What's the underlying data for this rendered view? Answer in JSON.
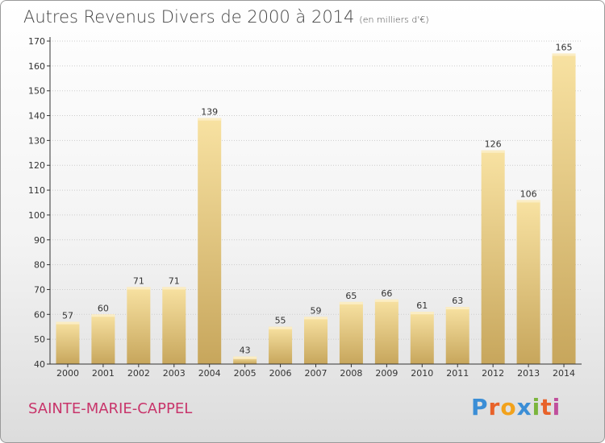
{
  "title": "Autres Revenus Divers de 2000 à 2014",
  "subtitle": "(en milliers d'€)",
  "town": "SAINTE-MARIE-CAPPEL",
  "logo": {
    "letters": [
      "P",
      "r",
      "o",
      "x",
      "i",
      "t",
      "i"
    ],
    "colors": [
      "#3b8ed6",
      "#e8622a",
      "#f2a21c",
      "#3b8ed6",
      "#7bb53c",
      "#e8622a",
      "#c04f9c"
    ]
  },
  "colors": {
    "bar_light": "#f6df9c",
    "bar_dark": "#c9a85e",
    "axis": "#333333",
    "grid": "#cccccc",
    "title": "#444444",
    "town": "#c8346a"
  },
  "chart_data": {
    "type": "bar",
    "categories": [
      "2000",
      "2001",
      "2002",
      "2003",
      "2004",
      "2005",
      "2006",
      "2007",
      "2008",
      "2009",
      "2010",
      "2011",
      "2012",
      "2013",
      "2014"
    ],
    "values": [
      57,
      60,
      71,
      71,
      139,
      43,
      55,
      59,
      65,
      66,
      61,
      63,
      126,
      106,
      165
    ],
    "ylim": [
      40,
      170
    ],
    "yticks": [
      40,
      50,
      60,
      70,
      80,
      90,
      100,
      110,
      120,
      130,
      140,
      150,
      160,
      170
    ],
    "grid": true,
    "xlabel": "",
    "ylabel": ""
  }
}
